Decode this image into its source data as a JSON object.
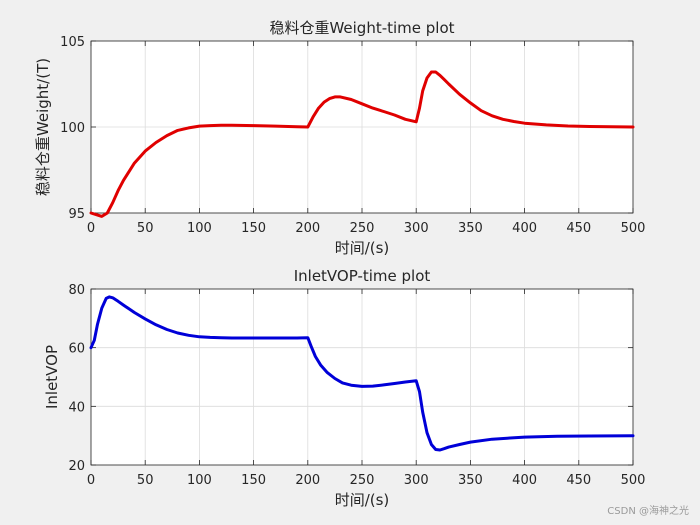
{
  "chart_data": [
    {
      "type": "line",
      "title": "稳料仓重Weight-time plot",
      "xlabel": "时间/(s)",
      "ylabel": "稳料仓重Weight/(T)",
      "xlim": [
        0,
        500
      ],
      "ylim": [
        95,
        105
      ],
      "xticks": [
        0,
        50,
        100,
        150,
        200,
        250,
        300,
        350,
        400,
        450,
        500
      ],
      "yticks": [
        95,
        100,
        105
      ],
      "grid": true,
      "series": [
        {
          "name": "Weight",
          "color": "#e00000",
          "x": [
            0,
            5,
            10,
            15,
            20,
            25,
            30,
            40,
            50,
            60,
            70,
            80,
            90,
            100,
            110,
            120,
            130,
            150,
            170,
            190,
            200,
            205,
            210,
            215,
            220,
            225,
            230,
            240,
            250,
            260,
            270,
            280,
            290,
            300,
            303,
            306,
            310,
            314,
            318,
            322,
            326,
            330,
            340,
            350,
            360,
            370,
            380,
            390,
            400,
            420,
            440,
            460,
            480,
            500
          ],
          "y": [
            95.0,
            94.9,
            94.8,
            95.0,
            95.6,
            96.3,
            96.9,
            97.9,
            98.6,
            99.1,
            99.5,
            99.8,
            99.95,
            100.05,
            100.08,
            100.1,
            100.1,
            100.08,
            100.05,
            100.02,
            100.0,
            100.6,
            101.1,
            101.45,
            101.65,
            101.75,
            101.75,
            101.6,
            101.35,
            101.1,
            100.9,
            100.7,
            100.45,
            100.3,
            101.1,
            102.1,
            102.85,
            103.2,
            103.2,
            103.0,
            102.75,
            102.5,
            101.9,
            101.4,
            100.95,
            100.65,
            100.45,
            100.32,
            100.22,
            100.12,
            100.06,
            100.03,
            100.01,
            100.0
          ]
        }
      ]
    },
    {
      "type": "line",
      "title": "InletVOP-time plot",
      "xlabel": "时间/(s)",
      "ylabel": "InletVOP",
      "xlim": [
        0,
        500
      ],
      "ylim": [
        20,
        80
      ],
      "xticks": [
        0,
        50,
        100,
        150,
        200,
        250,
        300,
        350,
        400,
        450,
        500
      ],
      "yticks": [
        20,
        40,
        60,
        80
      ],
      "grid": true,
      "series": [
        {
          "name": "InletVOP",
          "color": "#0000d8",
          "x": [
            0,
            3,
            6,
            10,
            14,
            17,
            20,
            25,
            30,
            40,
            50,
            60,
            70,
            80,
            90,
            100,
            110,
            120,
            130,
            150,
            170,
            190,
            200,
            203,
            207,
            212,
            218,
            225,
            232,
            240,
            250,
            260,
            270,
            280,
            290,
            300,
            303,
            306,
            310,
            314,
            318,
            322,
            326,
            330,
            340,
            350,
            370,
            400,
            430,
            460,
            500
          ],
          "y": [
            60.0,
            62.5,
            68.0,
            73.5,
            76.8,
            77.3,
            77.0,
            75.8,
            74.5,
            72.0,
            69.8,
            67.8,
            66.2,
            65.0,
            64.2,
            63.7,
            63.5,
            63.4,
            63.3,
            63.3,
            63.3,
            63.3,
            63.4,
            60.5,
            57.0,
            54.0,
            51.5,
            49.5,
            48.0,
            47.2,
            46.8,
            46.9,
            47.3,
            47.8,
            48.3,
            48.7,
            45.0,
            38.0,
            31.0,
            27.0,
            25.3,
            25.1,
            25.6,
            26.1,
            27.0,
            27.8,
            28.8,
            29.5,
            29.8,
            29.9,
            30.0
          ]
        }
      ]
    }
  ],
  "watermark": "CSDN @海神之光"
}
